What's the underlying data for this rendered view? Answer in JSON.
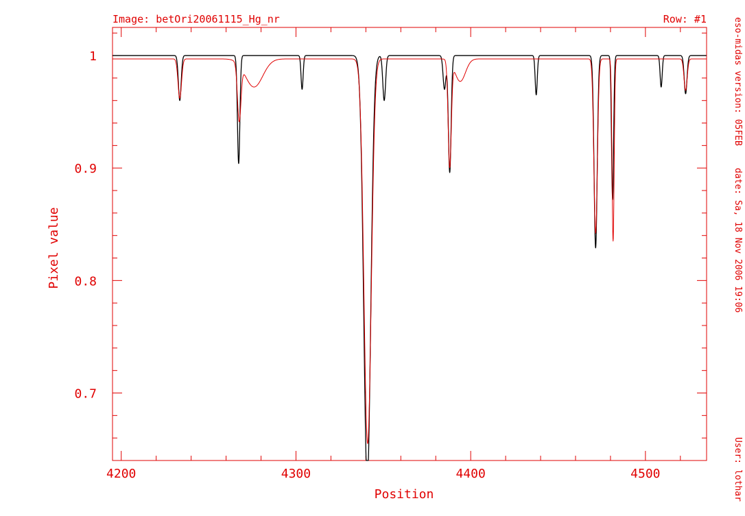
{
  "header": {
    "image_label": "Image:  betOri20061115_Hg_nr",
    "row_label": "Row:  #1"
  },
  "side_info": {
    "version": "eso-midas version:  05FEB",
    "date": "date:  Sa, 18 Nov 2006 19:06",
    "user": "User:  lothar"
  },
  "colors": {
    "frame": "#e00000",
    "observed_series": "#e00000",
    "model_series": "#000000",
    "background": "#ffffff"
  },
  "chart_data": {
    "type": "line",
    "title": "",
    "xlabel": "Position",
    "ylabel": "Pixel value",
    "xlim": [
      4195,
      4535
    ],
    "ylim": [
      0.64,
      1.025
    ],
    "xticks": [
      4200,
      4300,
      4400,
      4500
    ],
    "xtick_labels": [
      "4200",
      "4300",
      "4400",
      "4500"
    ],
    "yticks": [
      0.7,
      0.8,
      0.9,
      1.0
    ],
    "ytick_labels": [
      "0.7",
      "0.8",
      "0.9",
      "1"
    ],
    "grid": false,
    "legend": "none",
    "series": [
      {
        "color": "#000000",
        "continuum": 1.0,
        "lines": [
          {
            "center": 4233.5,
            "depth": 0.04,
            "width": 0.8
          },
          {
            "center": 4267.2,
            "depth": 0.096,
            "width": 0.7
          },
          {
            "center": 4303.5,
            "depth": 0.03,
            "width": 0.6
          },
          {
            "center": 4340.8,
            "depth": 0.38,
            "width": 2.0
          },
          {
            "center": 4350.5,
            "depth": 0.04,
            "width": 0.8
          },
          {
            "center": 4385.0,
            "depth": 0.03,
            "width": 0.8
          },
          {
            "center": 4388.0,
            "depth": 0.104,
            "width": 0.8
          },
          {
            "center": 4437.5,
            "depth": 0.035,
            "width": 0.6
          },
          {
            "center": 4471.5,
            "depth": 0.171,
            "width": 0.9
          },
          {
            "center": 4481.2,
            "depth": 0.128,
            "width": 0.6
          },
          {
            "center": 4509.0,
            "depth": 0.028,
            "width": 0.6
          },
          {
            "center": 4523.0,
            "depth": 0.034,
            "width": 0.8
          }
        ]
      },
      {
        "color": "#e00000",
        "continuum": 0.997,
        "lines": [
          {
            "center": 4233.5,
            "depth": 0.035,
            "width": 1.0
          },
          {
            "center": 4267.5,
            "depth": 0.05,
            "width": 1.0
          },
          {
            "center": 4276.0,
            "depth": 0.025,
            "width": 5.0
          },
          {
            "center": 4341.0,
            "depth": 0.342,
            "width": 2.1
          },
          {
            "center": 4388.0,
            "depth": 0.094,
            "width": 0.9
          },
          {
            "center": 4394.0,
            "depth": 0.02,
            "width": 3.0
          },
          {
            "center": 4471.5,
            "depth": 0.155,
            "width": 1.0
          },
          {
            "center": 4481.5,
            "depth": 0.162,
            "width": 0.6
          },
          {
            "center": 4523.0,
            "depth": 0.028,
            "width": 0.9
          }
        ]
      }
    ]
  }
}
